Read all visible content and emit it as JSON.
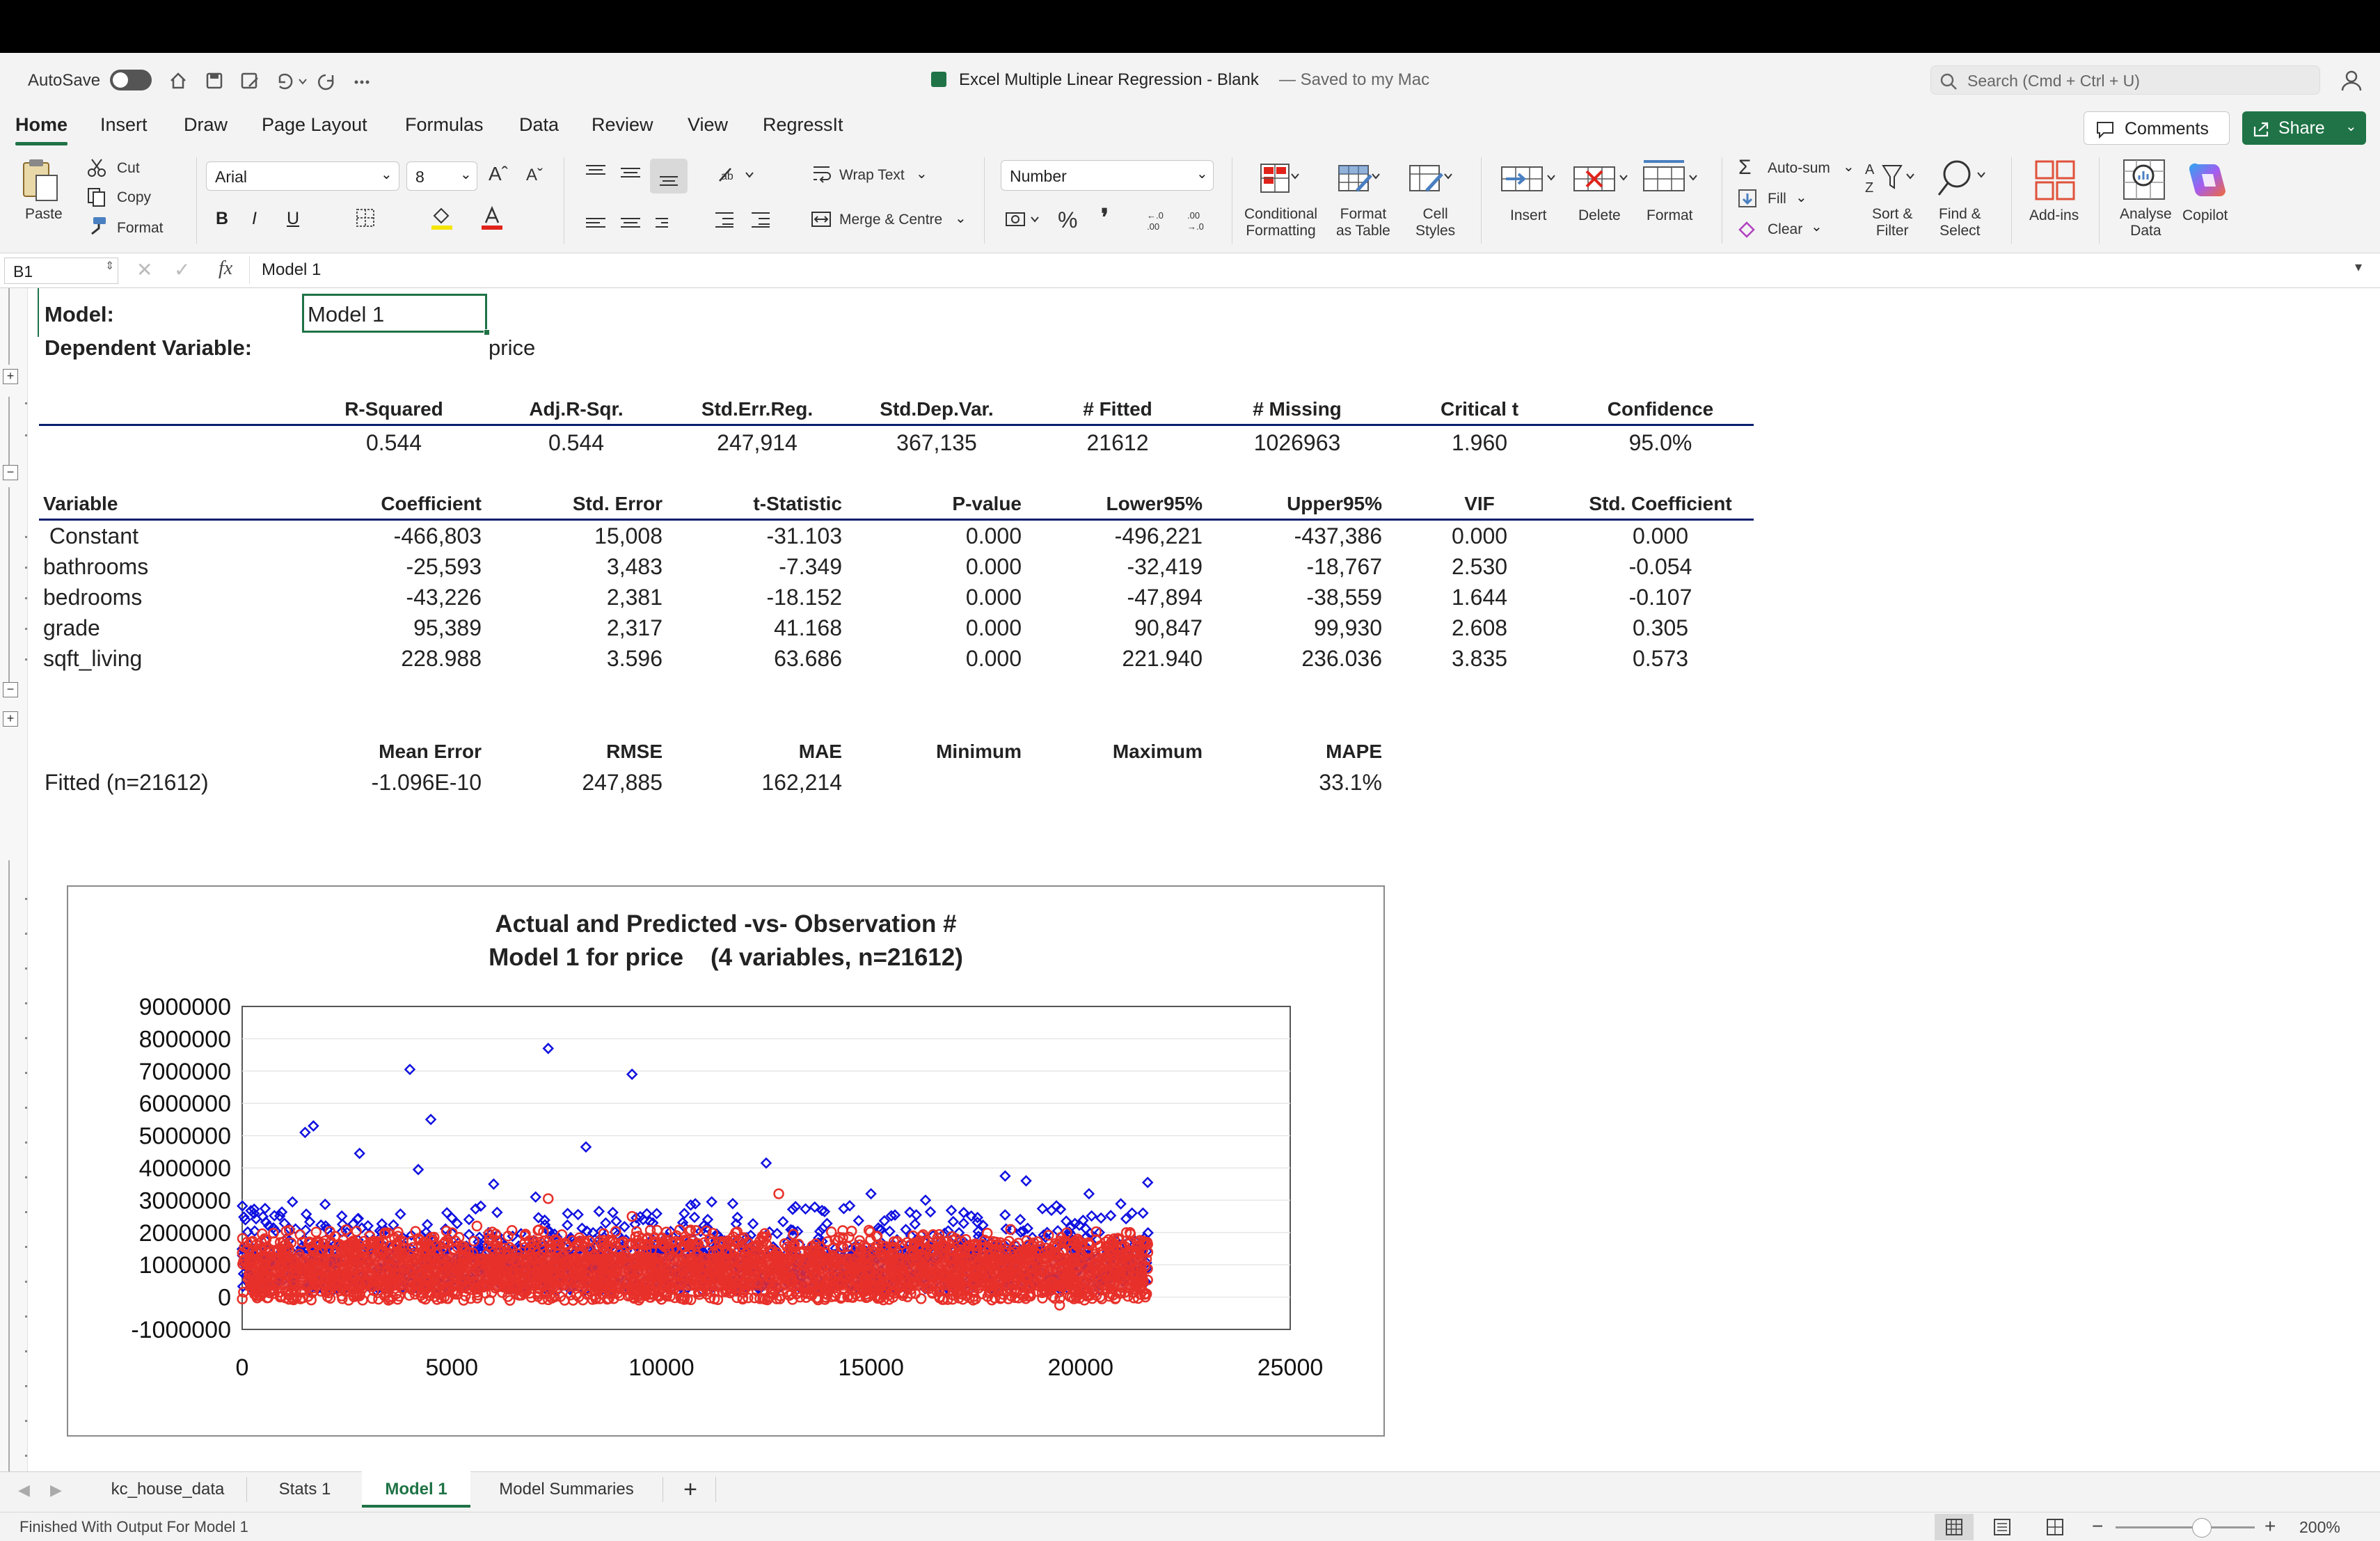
{
  "titlebar": {
    "autosave_label": "AutoSave",
    "doc_title": "Excel Multiple Linear Regression - Blank",
    "saved_status": "— Saved to my Mac",
    "search_placeholder": "Search (Cmd + Ctrl + U)"
  },
  "menu_tabs": [
    "Home",
    "Insert",
    "Draw",
    "Page Layout",
    "Formulas",
    "Data",
    "Review",
    "View",
    "RegressIt"
  ],
  "top_buttons": {
    "comments": "Comments",
    "share": "Share"
  },
  "ribbon": {
    "paste": "Paste",
    "cut": "Cut",
    "copy": "Copy",
    "format_painter": "Format",
    "font_name": "Arial",
    "font_size": "8",
    "bold": "B",
    "italic": "I",
    "underline": "U",
    "wrap_text": "Wrap Text",
    "merge_centre": "Merge & Centre",
    "number_format": "Number",
    "percent": "%",
    "conditional_formatting": [
      "Conditional",
      "Formatting"
    ],
    "format_as_table": [
      "Format",
      "as Table"
    ],
    "cell_styles": [
      "Cell",
      "Styles"
    ],
    "insert": "Insert",
    "delete": "Delete",
    "format": "Format",
    "autosum": "Auto-sum",
    "fill": "Fill",
    "clear": "Clear",
    "sort_filter": [
      "Sort &",
      "Filter"
    ],
    "find_select": [
      "Find &",
      "Select"
    ],
    "addins": "Add-ins",
    "analyse_data": [
      "Analyse",
      "Data"
    ],
    "copilot": "Copilot"
  },
  "formula_bar": {
    "name_box": "B1",
    "fx": "fx",
    "content": "Model 1"
  },
  "sheet": {
    "model_label": "Model:",
    "model_value": "Model 1",
    "dep_var_label": "Dependent Variable:",
    "dep_var_value": "price",
    "summary_headers": [
      "R-Squared",
      "Adj.R-Sqr.",
      "Std.Err.Reg.",
      "Std.Dep.Var.",
      "# Fitted",
      "# Missing",
      "Critical t",
      "Confidence"
    ],
    "summary_values": [
      "0.544",
      "0.544",
      "247,914",
      "367,135",
      "21612",
      "1026963",
      "1.960",
      "95.0%"
    ],
    "coef_headers": [
      "Variable",
      "Coefficient",
      "Std. Error",
      "t-Statistic",
      "P-value",
      "Lower95%",
      "Upper95%",
      "VIF",
      "Std. Coefficient"
    ],
    "coef_rows": [
      [
        " Constant",
        "-466,803",
        "15,008",
        "-31.103",
        "0.000",
        "-496,221",
        "-437,386",
        "0.000",
        "0.000"
      ],
      [
        "bathrooms",
        "-25,593",
        "3,483",
        "-7.349",
        "0.000",
        "-32,419",
        "-18,767",
        "2.530",
        "-0.054"
      ],
      [
        "bedrooms",
        "-43,226",
        "2,381",
        "-18.152",
        "0.000",
        "-47,894",
        "-38,559",
        "1.644",
        "-0.107"
      ],
      [
        "grade",
        "95,389",
        "2,317",
        "41.168",
        "0.000",
        "90,847",
        "99,930",
        "2.608",
        "0.305"
      ],
      [
        "sqft_living",
        "228.988",
        "3.596",
        "63.686",
        "0.000",
        "221.940",
        "236.036",
        "3.835",
        "0.573"
      ]
    ],
    "error_headers": [
      "Mean Error",
      "RMSE",
      "MAE",
      "Minimum",
      "Maximum",
      "MAPE"
    ],
    "error_row_label": "Fitted (n=21612)",
    "error_values": [
      "-1.096E-10",
      "247,885",
      "162,214",
      "",
      "",
      "33.1%"
    ]
  },
  "chart_data": {
    "type": "scatter",
    "title": "Actual and Predicted -vs- Observation #",
    "subtitle": "Model 1 for price    (4 variables, n=21612)",
    "xlim": [
      0,
      25000
    ],
    "ylim": [
      -1000000,
      9000000
    ],
    "xticks": [
      "0",
      "5000",
      "10000",
      "15000",
      "20000",
      "25000"
    ],
    "yticks": [
      "9000000",
      "8000000",
      "7000000",
      "6000000",
      "5000000",
      "4000000",
      "3000000",
      "2000000",
      "1000000",
      "0",
      "-1000000"
    ],
    "grid": true,
    "series": [
      {
        "color": "#1010e0",
        "marker": "diamond",
        "outliers": [
          [
            800,
            2050000
          ],
          [
            1200,
            2950000
          ],
          [
            1500,
            5100000
          ],
          [
            1700,
            5300000
          ],
          [
            2800,
            4450000
          ],
          [
            4000,
            7050000
          ],
          [
            4200,
            3950000
          ],
          [
            4500,
            5500000
          ],
          [
            7300,
            7700000
          ],
          [
            8200,
            4650000
          ],
          [
            9300,
            6900000
          ],
          [
            11200,
            2950000
          ],
          [
            12500,
            4150000
          ],
          [
            13200,
            2800000
          ],
          [
            18200,
            3750000
          ],
          [
            18700,
            3600000
          ],
          [
            21600,
            3550000
          ],
          [
            6000,
            3500000
          ],
          [
            7000,
            3100000
          ],
          [
            10700,
            2850000
          ],
          [
            15000,
            3200000
          ],
          [
            16300,
            3000000
          ],
          [
            20200,
            3200000
          ]
        ]
      },
      {
        "color": "#e8302a",
        "marker": "circle",
        "outliers": [
          [
            7300,
            3050000
          ],
          [
            9300,
            2500000
          ],
          [
            12800,
            3200000
          ],
          [
            19500,
            -250000
          ],
          [
            3400,
            1950000
          ],
          [
            16000,
            1900000
          ],
          [
            5600,
            2200000
          ]
        ]
      }
    ]
  },
  "sheet_tabs": [
    "kc_house_data",
    "Stats 1",
    "Model 1",
    "Model Summaries",
    "+"
  ],
  "status": {
    "message": "Finished With Output For Model 1",
    "zoom": "200%"
  },
  "colors": {
    "accent": "#1f7346",
    "chart_actual": "#1010e0",
    "chart_predicted": "#e8302a",
    "table_rule": "#0a1f6e"
  }
}
